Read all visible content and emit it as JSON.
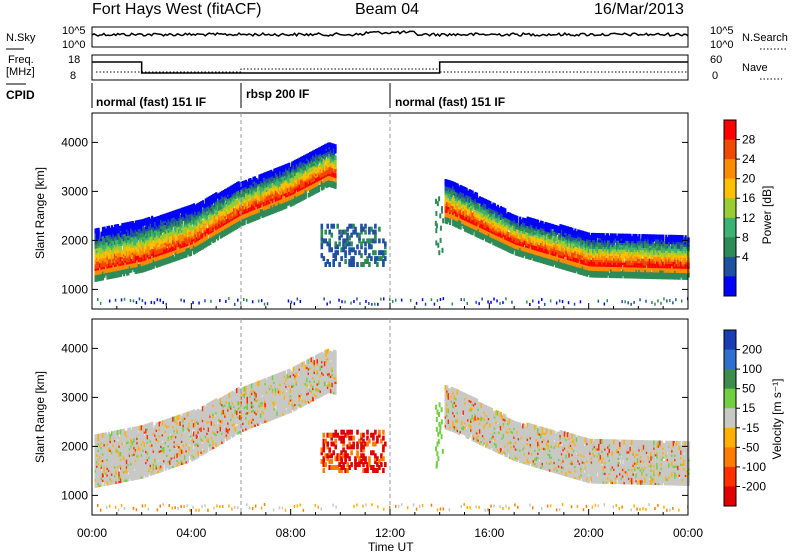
{
  "header": {
    "station": "Fort Hays West (fitACF)",
    "beam": "Beam 04",
    "date": "16/Mar/2013"
  },
  "labels": {
    "nsky": "N.Sky",
    "nsearch": "N.Search",
    "freq": "Freq.",
    "freq_unit": "[MHz]",
    "nave": "Nave",
    "cpid": "CPID",
    "nsky_ticks": [
      "10^5",
      "10^0"
    ],
    "nsearch_ticks": [
      "10^5",
      "10^0"
    ],
    "freq_ticks": [
      "18",
      "8"
    ],
    "nave_ticks": [
      "60",
      "0"
    ]
  },
  "cpid_segments": [
    {
      "label": "normal (fast) 151 IF",
      "start": 0.0,
      "end": 6.0
    },
    {
      "label": "rbsp 200 IF",
      "start": 6.0,
      "end": 12.0
    },
    {
      "label": "normal (fast) 151 IF",
      "start": 12.0,
      "end": 24.0
    }
  ],
  "chart_data": [
    {
      "type": "heatmap",
      "name": "power-panel",
      "xlabel": "Time UT",
      "ylabel": "Slant Range [km]",
      "x_range_hours": [
        0,
        24
      ],
      "ylim": [
        600,
        4600
      ],
      "yticks": [
        1000,
        2000,
        3000,
        4000
      ],
      "xtick_labels": [
        "00:00",
        "04:00",
        "08:00",
        "12:00",
        "16:00",
        "20:00",
        "00:00"
      ],
      "xtick_hours": [
        0,
        4,
        8,
        12,
        16,
        20,
        24
      ],
      "colorbar": {
        "label": "Power [dB]",
        "ticks": [
          "28",
          "24",
          "20",
          "16",
          "12",
          "8",
          "4"
        ],
        "colors": [
          "#ff0000",
          "#f04a00",
          "#ff8c00",
          "#ffc000",
          "#9acd32",
          "#3cb371",
          "#2e8b57",
          "#2050a0",
          "#0000ff"
        ]
      },
      "echo_band_km": [
        {
          "t": 0.0,
          "center": 1450,
          "top": 2200
        },
        {
          "t": 2.0,
          "center": 1650,
          "top": 2400
        },
        {
          "t": 4.0,
          "center": 2000,
          "top": 2700
        },
        {
          "t": 6.0,
          "center": 2600,
          "top": 3200
        },
        {
          "t": 8.0,
          "center": 3000,
          "top": 3600
        },
        {
          "t": 9.5,
          "center": 3400,
          "top": 4000
        },
        {
          "t": 14.5,
          "center": 2600,
          "top": 3200
        },
        {
          "t": 17.0,
          "center": 2000,
          "top": 2500
        },
        {
          "t": 20.0,
          "center": 1550,
          "top": 2150
        },
        {
          "t": 24.0,
          "center": 1500,
          "top": 2100
        }
      ]
    },
    {
      "type": "heatmap",
      "name": "velocity-panel",
      "xlabel": "Time UT",
      "ylabel": "Slant Range [km]",
      "x_range_hours": [
        0,
        24
      ],
      "ylim": [
        600,
        4600
      ],
      "yticks": [
        1000,
        2000,
        3000,
        4000
      ],
      "colorbar": {
        "label": "Velocity [m s⁻¹]",
        "ticks": [
          "200",
          "100",
          "50",
          "15",
          "-15",
          "-50",
          "-100",
          "-200"
        ],
        "colors": [
          "#1a3cb4",
          "#2f6fd0",
          "#3c8c4c",
          "#70d040",
          "#c8c8c4",
          "#ffb000",
          "#ff7c00",
          "#ff3000",
          "#e00000"
        ]
      }
    }
  ]
}
